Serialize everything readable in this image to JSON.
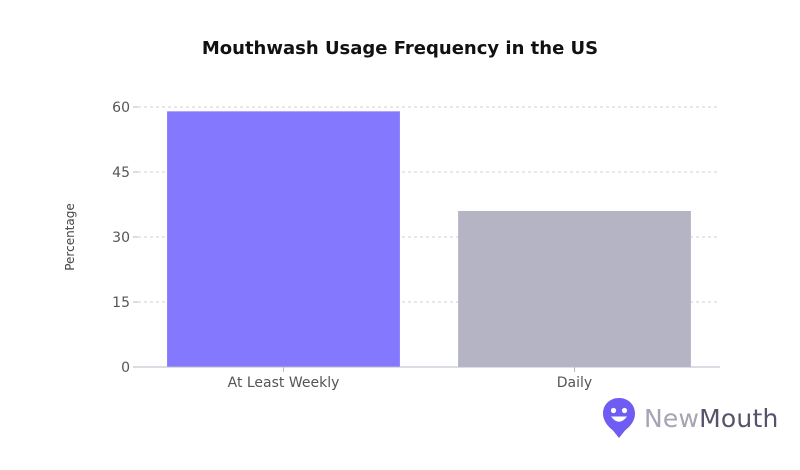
{
  "title": "Mouthwash Usage Frequency in the US",
  "logo": {
    "part1": "New",
    "part2": "Mouth",
    "color": "#6f5cf2"
  },
  "chart_data": {
    "type": "bar",
    "title": "Mouthwash Usage Frequency in the US",
    "xlabel": "",
    "ylabel": "Percentage",
    "categories": [
      "At Least Weekly",
      "Daily"
    ],
    "values": [
      59,
      36
    ],
    "colors": [
      "#8478ff",
      "#b5b4c4"
    ],
    "ylim": [
      0,
      60
    ],
    "yticks": [
      0,
      15,
      30,
      45,
      60
    ],
    "grid": true
  }
}
